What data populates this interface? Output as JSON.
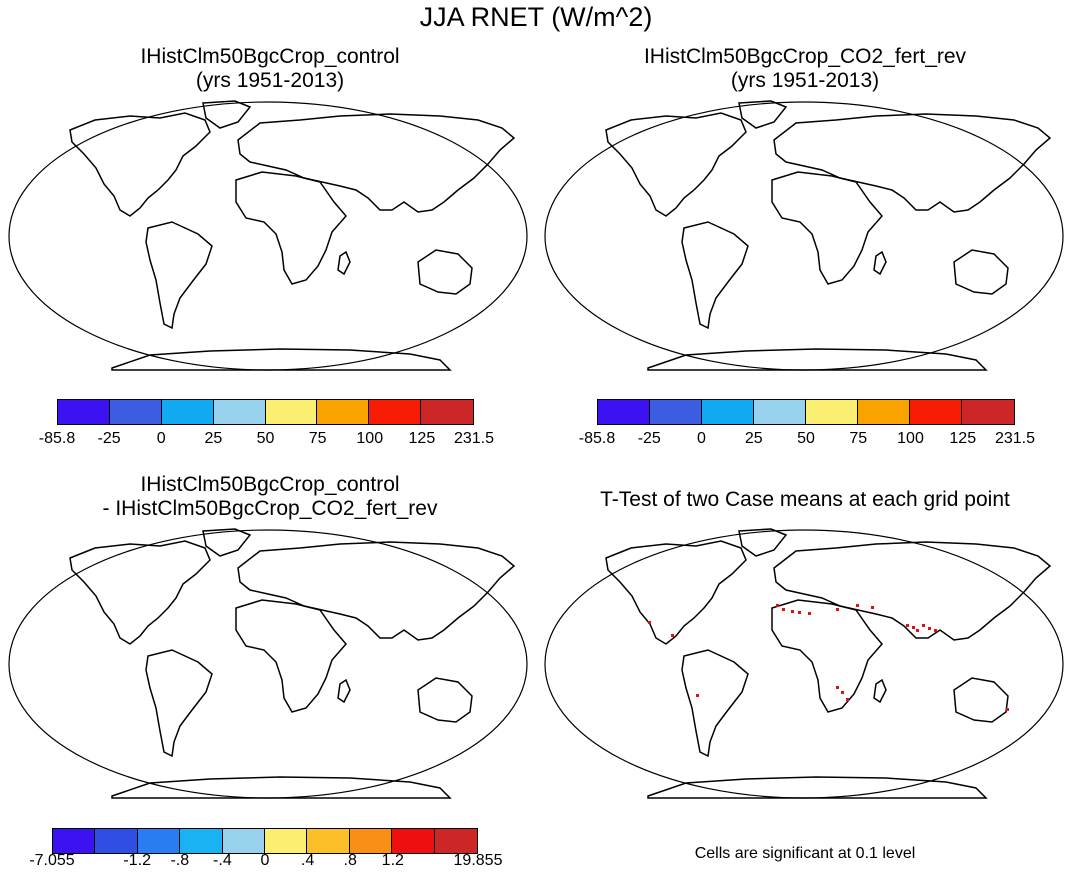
{
  "figure_title": "JJA RNET (W/m^2)",
  "panels": [
    {
      "title_line1": "IHistClm50BgcCrop_control",
      "title_line2": "(yrs 1951-2013)"
    },
    {
      "title_line1": "IHistClm50BgcCrop_CO2_fert_rev",
      "title_line2": "(yrs 1951-2013)"
    },
    {
      "title_line1": "IHistClm50BgcCrop_control",
      "title_line2": "- IHistClm50BgcCrop_CO2_fert_rev"
    },
    {
      "title_line1": "T-Test of two Case means at each grid point",
      "title_line2": ""
    }
  ],
  "colorbar_mean": {
    "colors": [
      "#3d12f2",
      "#3b5ee0",
      "#11a9f2",
      "#98d1ed",
      "#fbef71",
      "#f9a200",
      "#f81c04",
      "#cc2626"
    ],
    "labels": [
      "-85.8",
      "-25",
      "0",
      "25",
      "50",
      "75",
      "100",
      "125",
      "231.5"
    ]
  },
  "colorbar_diff": {
    "colors": [
      "#3d12f2",
      "#2f4fe4",
      "#2a7df0",
      "#1bb2f4",
      "#98d1ed",
      "#fbef71",
      "#fbbf27",
      "#f98f14",
      "#ee1010",
      "#cc2626"
    ],
    "labels": [
      "-7.055",
      "",
      "-1.2",
      "-.8",
      "-.4",
      "0",
      ".4",
      ".8",
      "1.2",
      "",
      "19.855"
    ]
  },
  "significance_note": "Cells are significant at 0.1 level"
}
